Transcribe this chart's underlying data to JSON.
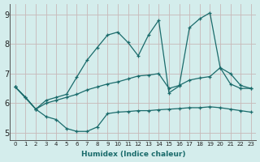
{
  "background_color": "#d4edec",
  "grid_color": "#b8d8d6",
  "line_color": "#1a6b6b",
  "x_label": "Humidex (Indice chaleur)",
  "ylim": [
    4.75,
    9.35
  ],
  "xlim": [
    -0.5,
    23.5
  ],
  "yticks": [
    5,
    6,
    7,
    8,
    9
  ],
  "xticks": [
    0,
    1,
    2,
    3,
    4,
    5,
    6,
    7,
    8,
    9,
    10,
    11,
    12,
    13,
    14,
    15,
    16,
    17,
    18,
    19,
    20,
    21,
    22,
    23
  ],
  "series1_x": [
    0,
    1,
    2,
    3,
    4,
    5,
    6,
    7,
    8,
    9,
    10,
    11,
    12,
    13,
    14,
    15,
    16,
    17,
    18,
    19,
    20,
    21,
    22,
    23
  ],
  "series1_y": [
    6.55,
    6.2,
    5.8,
    5.55,
    5.45,
    5.15,
    5.05,
    5.05,
    5.2,
    5.65,
    5.7,
    5.72,
    5.75,
    5.75,
    5.78,
    5.8,
    5.82,
    5.85,
    5.85,
    5.88,
    5.85,
    5.8,
    5.75,
    5.7
  ],
  "series2_x": [
    0,
    2,
    3,
    4,
    5,
    6,
    7,
    8,
    9,
    10,
    11,
    12,
    13,
    14,
    15,
    16,
    17,
    18,
    19,
    20,
    21,
    22,
    23
  ],
  "series2_y": [
    6.55,
    5.8,
    6.0,
    6.1,
    6.2,
    6.3,
    6.45,
    6.55,
    6.65,
    6.72,
    6.82,
    6.92,
    6.95,
    7.0,
    6.5,
    6.6,
    6.78,
    6.85,
    6.9,
    7.2,
    6.65,
    6.5,
    6.5
  ],
  "series3_x": [
    0,
    1,
    2,
    3,
    4,
    5,
    6,
    7,
    8,
    9,
    10,
    11,
    12,
    13,
    14,
    15,
    16,
    17,
    18,
    19,
    20,
    21,
    22,
    23
  ],
  "series3_y": [
    6.55,
    6.2,
    5.8,
    6.1,
    6.2,
    6.3,
    6.88,
    7.45,
    7.88,
    8.3,
    8.4,
    8.05,
    7.6,
    8.3,
    8.8,
    6.35,
    6.58,
    8.55,
    8.85,
    9.05,
    7.2,
    7.0,
    6.6,
    6.5
  ]
}
